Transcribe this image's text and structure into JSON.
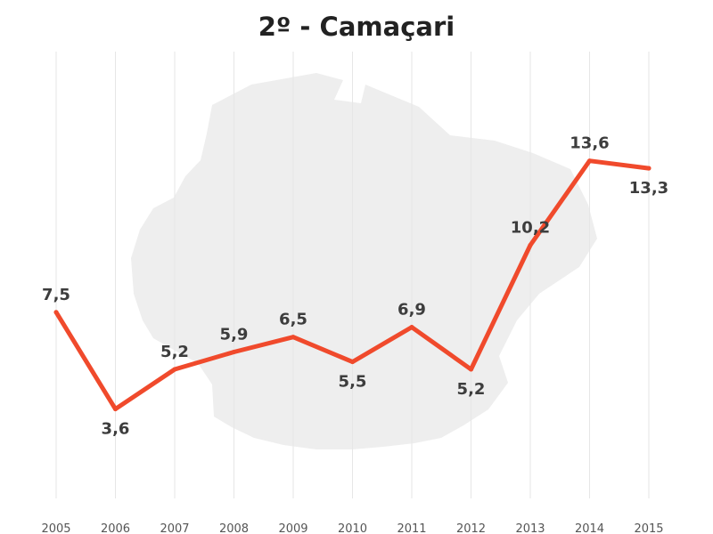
{
  "chart_data": {
    "type": "line",
    "title": "2º - Camaçari",
    "xlabel": "",
    "ylabel": "",
    "categories": [
      "2005",
      "2006",
      "2007",
      "2008",
      "2009",
      "2010",
      "2011",
      "2012",
      "2013",
      "2014",
      "2015"
    ],
    "series": [
      {
        "values": [
          7.5,
          3.6,
          5.2,
          5.9,
          6.5,
          5.5,
          6.9,
          5.2,
          10.2,
          13.6,
          13.3
        ],
        "labels": [
          "7,5",
          "3,6",
          "5,2",
          "5,9",
          "6,5",
          "5,5",
          "6,9",
          "5,2",
          "10,2",
          "13,6",
          "13,3"
        ],
        "label_side": [
          "above",
          "below",
          "above",
          "above",
          "above",
          "below",
          "above",
          "below",
          "above",
          "above",
          "below"
        ]
      }
    ],
    "ylim": [
      0,
      18
    ],
    "grid": "vertical",
    "legend": "none",
    "background": "map-silhouette",
    "colors": {
      "line": "#f04a2c",
      "label": "#3d3d3d",
      "tick": "#555555",
      "grid": "#e6e6e6",
      "map": "#eeeeee"
    }
  }
}
